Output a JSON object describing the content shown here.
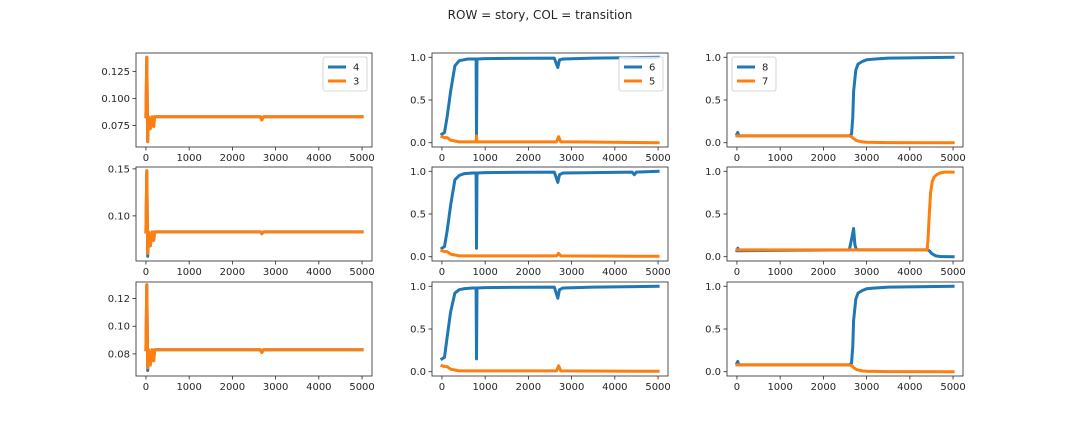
{
  "figure": {
    "suptitle": "ROW = story, COL = transition"
  },
  "colors": {
    "blue": "#1f77b4",
    "orange": "#ff7f0e",
    "axis": "#262626",
    "legend_border": "#cccccc"
  },
  "chart_data": [
    {
      "type": "line",
      "row": 0,
      "col": 0,
      "xlim": [
        -230,
        5230
      ],
      "ylim": [
        0.055,
        0.142
      ],
      "xticks": [
        0,
        1000,
        2000,
        3000,
        4000,
        5000
      ],
      "yticks": [
        0.075,
        0.1,
        0.125
      ],
      "ytick_labels": [
        "0.075",
        "0.100",
        "0.125"
      ],
      "legend": {
        "placement": "top-right",
        "entries": [
          "4",
          "3"
        ]
      },
      "series": [
        {
          "name": "4",
          "color": "blue",
          "x": [
            0,
            20,
            40,
            60,
            100,
            140,
            180,
            200,
            2650,
            2680,
            2720,
            5000
          ],
          "y": [
            0.083,
            0.138,
            0.06,
            0.083,
            0.072,
            0.083,
            0.074,
            0.083,
            0.083,
            0.08,
            0.083,
            0.083
          ]
        },
        {
          "name": "3",
          "color": "orange",
          "x": [
            0,
            20,
            40,
            60,
            100,
            140,
            180,
            200,
            2650,
            2680,
            2720,
            5000
          ],
          "y": [
            0.083,
            0.138,
            0.06,
            0.083,
            0.072,
            0.083,
            0.074,
            0.083,
            0.083,
            0.08,
            0.083,
            0.083
          ]
        }
      ]
    },
    {
      "type": "line",
      "row": 0,
      "col": 1,
      "xlim": [
        -230,
        5230
      ],
      "ylim": [
        -0.05,
        1.05
      ],
      "xticks": [
        0,
        1000,
        2000,
        3000,
        4000,
        5000
      ],
      "yticks": [
        0,
        0.5,
        1
      ],
      "ytick_labels": [
        "0.0",
        "0.5",
        "1.0"
      ],
      "legend": {
        "placement": "top-right",
        "entries": [
          "6",
          "5"
        ]
      },
      "series": [
        {
          "name": "6",
          "color": "blue",
          "x": [
            0,
            60,
            120,
            200,
            300,
            400,
            500,
            600,
            700,
            790,
            800,
            810,
            1000,
            2600,
            2680,
            2720,
            2800,
            3500,
            5000
          ],
          "y": [
            0.1,
            0.12,
            0.3,
            0.6,
            0.9,
            0.96,
            0.97,
            0.98,
            0.98,
            0.98,
            0.05,
            0.98,
            0.985,
            0.99,
            0.88,
            0.97,
            0.98,
            0.99,
            1.0
          ]
        },
        {
          "name": "5",
          "color": "orange",
          "x": [
            0,
            60,
            120,
            200,
            300,
            400,
            600,
            790,
            800,
            810,
            1000,
            2650,
            2700,
            2750,
            3000,
            5000
          ],
          "y": [
            0.07,
            0.06,
            0.06,
            0.03,
            0.02,
            0.01,
            0.01,
            0.01,
            0.08,
            0.01,
            0.01,
            0.01,
            0.07,
            0.01,
            0.01,
            0.0
          ]
        }
      ]
    },
    {
      "type": "line",
      "row": 0,
      "col": 2,
      "xlim": [
        -230,
        5230
      ],
      "ylim": [
        -0.05,
        1.05
      ],
      "xticks": [
        0,
        1000,
        2000,
        3000,
        4000,
        5000
      ],
      "yticks": [
        0,
        0.5,
        1
      ],
      "ytick_labels": [
        "0.0",
        "0.5",
        "1.0"
      ],
      "legend": {
        "placement": "top-left",
        "entries": [
          "8",
          "7"
        ]
      },
      "series": [
        {
          "name": "8",
          "color": "blue",
          "x": [
            0,
            20,
            40,
            2600,
            2650,
            2680,
            2700,
            2750,
            2800,
            2900,
            3000,
            3200,
            3500,
            5000
          ],
          "y": [
            0.1,
            0.12,
            0.08,
            0.08,
            0.1,
            0.3,
            0.6,
            0.85,
            0.92,
            0.95,
            0.97,
            0.98,
            0.99,
            1.0
          ]
        },
        {
          "name": "7",
          "color": "orange",
          "x": [
            0,
            2600,
            2650,
            2700,
            2750,
            2800,
            2900,
            3000,
            3500,
            5000
          ],
          "y": [
            0.08,
            0.08,
            0.07,
            0.05,
            0.03,
            0.02,
            0.01,
            0.005,
            0.002,
            0.0
          ]
        }
      ]
    },
    {
      "type": "line",
      "row": 1,
      "col": 0,
      "xlim": [
        -230,
        5230
      ],
      "ylim": [
        0.052,
        0.152
      ],
      "xticks": [
        0,
        1000,
        2000,
        3000,
        4000,
        5000
      ],
      "yticks": [
        0.1,
        0.15
      ],
      "ytick_labels": [
        "0.10",
        "0.15"
      ],
      "legend": null,
      "series": [
        {
          "name": "",
          "color": "blue",
          "x": [
            0,
            20,
            40,
            60,
            100,
            140,
            180,
            200,
            2650,
            2680,
            2720,
            5000
          ],
          "y": [
            0.083,
            0.148,
            0.057,
            0.083,
            0.068,
            0.083,
            0.074,
            0.083,
            0.083,
            0.081,
            0.083,
            0.083
          ]
        },
        {
          "name": "",
          "color": "orange",
          "x": [
            0,
            20,
            40,
            60,
            100,
            140,
            180,
            200,
            2650,
            2680,
            2720,
            5000
          ],
          "y": [
            0.083,
            0.148,
            0.06,
            0.083,
            0.068,
            0.083,
            0.074,
            0.083,
            0.083,
            0.081,
            0.083,
            0.083
          ]
        }
      ]
    },
    {
      "type": "line",
      "row": 1,
      "col": 1,
      "xlim": [
        -230,
        5230
      ],
      "ylim": [
        -0.05,
        1.05
      ],
      "xticks": [
        0,
        1000,
        2000,
        3000,
        4000,
        5000
      ],
      "yticks": [
        0,
        0.5,
        1
      ],
      "ytick_labels": [
        "0.0",
        "0.5",
        "1.0"
      ],
      "legend": null,
      "series": [
        {
          "name": "",
          "color": "blue",
          "x": [
            0,
            60,
            120,
            200,
            300,
            400,
            500,
            600,
            700,
            790,
            800,
            810,
            1000,
            2600,
            2680,
            2720,
            2800,
            4400,
            4450,
            4500,
            5000
          ],
          "y": [
            0.1,
            0.12,
            0.3,
            0.6,
            0.9,
            0.95,
            0.97,
            0.975,
            0.98,
            0.98,
            0.1,
            0.98,
            0.985,
            0.99,
            0.87,
            0.96,
            0.98,
            0.99,
            0.96,
            0.99,
            1.0
          ]
        },
        {
          "name": "",
          "color": "orange",
          "x": [
            0,
            60,
            120,
            200,
            300,
            400,
            600,
            1000,
            2650,
            2700,
            2750,
            5000
          ],
          "y": [
            0.07,
            0.06,
            0.06,
            0.03,
            0.02,
            0.01,
            0.01,
            0.01,
            0.01,
            0.04,
            0.01,
            0.005
          ]
        }
      ]
    },
    {
      "type": "line",
      "row": 1,
      "col": 2,
      "xlim": [
        -230,
        5230
      ],
      "ylim": [
        -0.05,
        1.05
      ],
      "xticks": [
        0,
        1000,
        2000,
        3000,
        4000,
        5000
      ],
      "yticks": [
        0,
        0.5,
        1
      ],
      "ytick_labels": [
        "0.0",
        "0.5",
        "1.0"
      ],
      "legend": null,
      "series": [
        {
          "name": "",
          "color": "blue",
          "x": [
            0,
            20,
            40,
            2600,
            2650,
            2700,
            2730,
            2760,
            2800,
            4400,
            4450,
            4500,
            4600,
            4700,
            4800,
            5000
          ],
          "y": [
            0.07,
            0.1,
            0.07,
            0.08,
            0.2,
            0.33,
            0.14,
            0.09,
            0.08,
            0.08,
            0.07,
            0.04,
            0.01,
            0.003,
            0.001,
            0.0
          ]
        },
        {
          "name": "",
          "color": "orange",
          "x": [
            0,
            2600,
            4400,
            4420,
            4450,
            4480,
            4520,
            4560,
            4620,
            4700,
            4800,
            5000
          ],
          "y": [
            0.08,
            0.08,
            0.08,
            0.2,
            0.5,
            0.75,
            0.88,
            0.93,
            0.96,
            0.98,
            0.99,
            0.99
          ]
        }
      ]
    },
    {
      "type": "line",
      "row": 2,
      "col": 0,
      "xlim": [
        -230,
        5230
      ],
      "ylim": [
        0.064,
        0.132
      ],
      "xticks": [
        0,
        1000,
        2000,
        3000,
        4000,
        5000
      ],
      "yticks": [
        0.08,
        0.1,
        0.12
      ],
      "ytick_labels": [
        "0.08",
        "0.10",
        "0.12"
      ],
      "legend": null,
      "series": [
        {
          "name": "",
          "color": "blue",
          "x": [
            0,
            20,
            40,
            60,
            100,
            140,
            180,
            200,
            2650,
            2680,
            2720,
            5000
          ],
          "y": [
            0.083,
            0.13,
            0.068,
            0.083,
            0.072,
            0.083,
            0.075,
            0.083,
            0.083,
            0.081,
            0.083,
            0.083
          ]
        },
        {
          "name": "",
          "color": "orange",
          "x": [
            0,
            20,
            40,
            60,
            100,
            140,
            180,
            200,
            2650,
            2680,
            2720,
            5000
          ],
          "y": [
            0.083,
            0.13,
            0.07,
            0.083,
            0.072,
            0.083,
            0.075,
            0.083,
            0.083,
            0.081,
            0.083,
            0.083
          ]
        }
      ]
    },
    {
      "type": "line",
      "row": 2,
      "col": 1,
      "xlim": [
        -230,
        5230
      ],
      "ylim": [
        -0.05,
        1.05
      ],
      "xticks": [
        0,
        1000,
        2000,
        3000,
        4000,
        5000
      ],
      "yticks": [
        0,
        0.5,
        1
      ],
      "ytick_labels": [
        "0.0",
        "0.5",
        "1.0"
      ],
      "legend": null,
      "series": [
        {
          "name": "",
          "color": "blue",
          "x": [
            0,
            60,
            120,
            200,
            300,
            400,
            500,
            600,
            700,
            790,
            800,
            810,
            1000,
            2600,
            2680,
            2720,
            2800,
            3500,
            5000
          ],
          "y": [
            0.15,
            0.17,
            0.4,
            0.7,
            0.92,
            0.96,
            0.97,
            0.975,
            0.98,
            0.98,
            0.15,
            0.98,
            0.985,
            0.99,
            0.86,
            0.96,
            0.98,
            0.99,
            1.0
          ]
        },
        {
          "name": "",
          "color": "orange",
          "x": [
            0,
            60,
            120,
            200,
            300,
            400,
            600,
            1000,
            2650,
            2700,
            2750,
            5000
          ],
          "y": [
            0.07,
            0.06,
            0.06,
            0.03,
            0.02,
            0.01,
            0.01,
            0.01,
            0.01,
            0.07,
            0.01,
            0.005
          ]
        }
      ]
    },
    {
      "type": "line",
      "row": 2,
      "col": 2,
      "xlim": [
        -230,
        5230
      ],
      "ylim": [
        -0.05,
        1.05
      ],
      "xticks": [
        0,
        1000,
        2000,
        3000,
        4000,
        5000
      ],
      "yticks": [
        0,
        0.5,
        1
      ],
      "ytick_labels": [
        "0.0",
        "0.5",
        "1.0"
      ],
      "legend": null,
      "series": [
        {
          "name": "",
          "color": "blue",
          "x": [
            0,
            20,
            40,
            2600,
            2650,
            2680,
            2700,
            2750,
            2800,
            2900,
            3000,
            3200,
            3500,
            5000
          ],
          "y": [
            0.1,
            0.12,
            0.08,
            0.08,
            0.1,
            0.3,
            0.6,
            0.85,
            0.92,
            0.95,
            0.97,
            0.98,
            0.99,
            1.0
          ]
        },
        {
          "name": "",
          "color": "orange",
          "x": [
            0,
            2600,
            2650,
            2700,
            2750,
            2800,
            2900,
            3000,
            3500,
            5000
          ],
          "y": [
            0.08,
            0.08,
            0.07,
            0.05,
            0.03,
            0.02,
            0.01,
            0.005,
            0.002,
            0.0
          ]
        }
      ]
    }
  ]
}
